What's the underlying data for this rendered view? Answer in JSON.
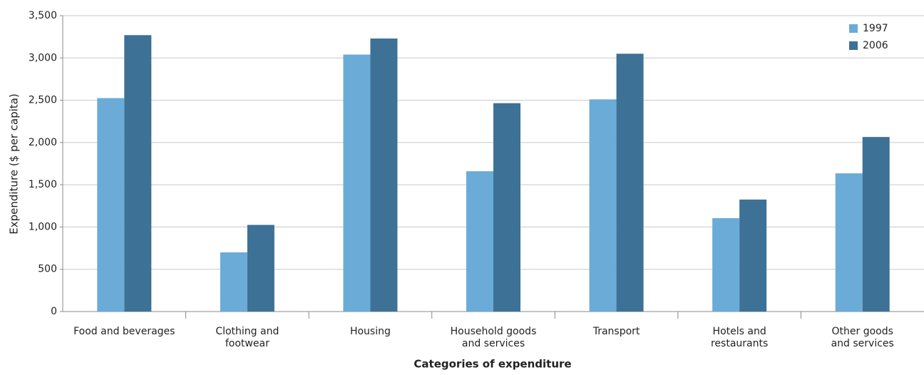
{
  "chart_data": {
    "type": "bar",
    "x_label": "Categories of expenditure",
    "y_label": "Expenditure ($ per capita)",
    "categories": [
      [
        "Food and beverages"
      ],
      [
        "Clothing and",
        "footwear"
      ],
      [
        "Housing"
      ],
      [
        "Household goods",
        "and services"
      ],
      [
        "Transport"
      ],
      [
        "Hotels and",
        "restaurants"
      ],
      [
        "Other goods",
        "and services"
      ]
    ],
    "series": [
      {
        "name": "1997",
        "color": "#6aabd8",
        "values": [
          2525,
          700,
          3040,
          1660,
          2510,
          1105,
          1635
        ]
      },
      {
        "name": "2006",
        "color": "#3d7196",
        "values": [
          3270,
          1025,
          3230,
          2465,
          3050,
          1325,
          2065
        ]
      }
    ],
    "ylim": [
      0,
      3500
    ],
    "yticks": [
      0,
      500,
      {
        "value": 1000,
        "label": "1,000"
      },
      {
        "value": 1500,
        "label": "1,500"
      },
      {
        "value": 2000,
        "label": "2,000"
      },
      {
        "value": 2500,
        "label": "2,500"
      },
      {
        "value": 3000,
        "label": "3,000"
      },
      {
        "value": 3500,
        "label": "3,500"
      }
    ],
    "grid": true,
    "legend": "top-right"
  }
}
